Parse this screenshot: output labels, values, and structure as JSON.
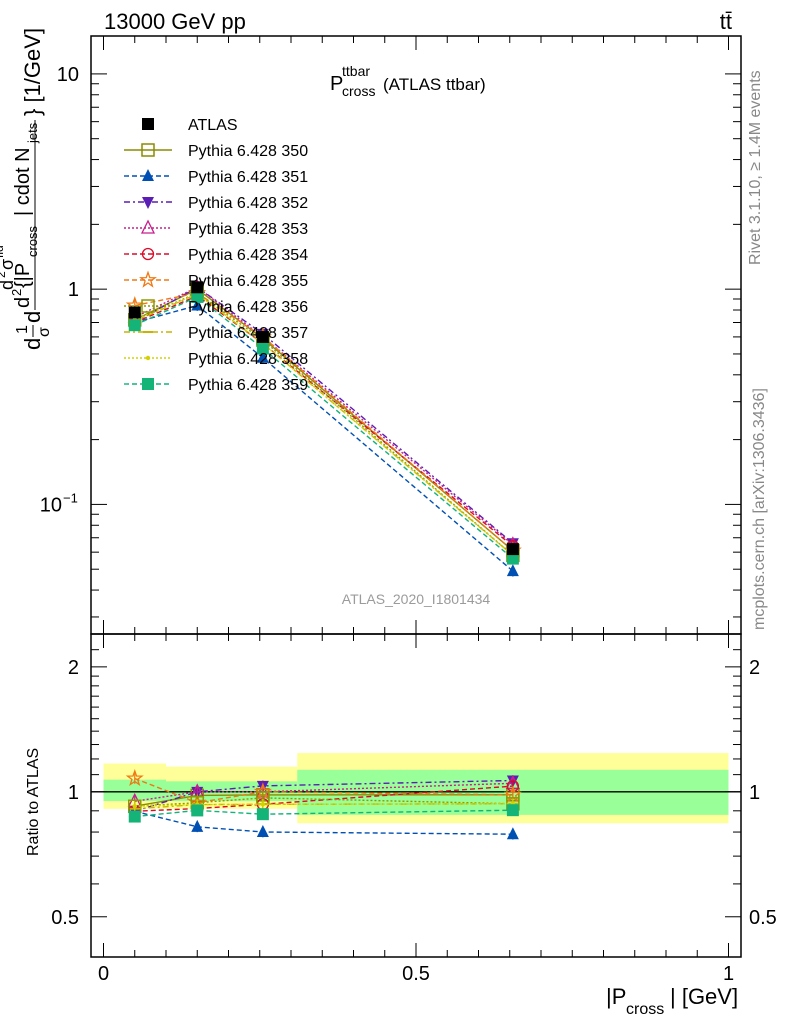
{
  "header": {
    "energy": "13000 GeV pp",
    "process": "tt̄"
  },
  "side_text": {
    "rivet": "Rivet 3.1.10, ≥ 1.4M events",
    "mcplots": "mcplots.cern.ch [arXiv:1306.3436]"
  },
  "title": {
    "main": "P",
    "sup": "ttbar",
    "sub": "cross",
    "tail": " (ATLAS ttbar)"
  },
  "watermark": "ATLAS_2020_I1801434",
  "ylabel_main": {
    "a": "d",
    "frac1": "1",
    "frac2": "σ",
    "b": "d",
    "c": "d",
    "sup2": "2",
    "d": "{|P",
    "sub": "cross",
    "e": "| cdot N",
    "sub2": "jets",
    "f": "} [1/GeV]",
    "top1": "d",
    "top2": "2",
    "top3": "σ",
    "top4": "fid"
  },
  "ylabel_ratio": "Ratio to ATLAS",
  "xlabel": {
    "pre": "|P",
    "sub": "cross",
    "post": "| [GeV]"
  },
  "ticks_main": [
    {
      "label": "10",
      "value": 10
    },
    {
      "label": "1",
      "value": 1
    },
    {
      "label": "10",
      "sup": "−1",
      "value": 0.1
    }
  ],
  "ticks_ratio": [
    {
      "label": "2",
      "value": 2
    },
    {
      "label": "1",
      "value": 1
    },
    {
      "label": "0.5",
      "value": 0.5
    }
  ],
  "ticks_x": [
    {
      "label": "0",
      "value": 0
    },
    {
      "label": "0.5",
      "value": 0.5
    },
    {
      "label": "1",
      "value": 1
    }
  ],
  "chart_data": {
    "type": "line",
    "x_edges": [
      0,
      0.1,
      0.2,
      0.31,
      1.0
    ],
    "x": [
      0.05,
      0.15,
      0.255,
      0.655
    ],
    "xlim": [
      -0.02,
      1.02
    ],
    "ylim_main": [
      0.025,
      15
    ],
    "ylim_ratio": [
      0.4,
      2.4
    ],
    "log_y": true,
    "reference": {
      "name": "ATLAS",
      "values": [
        0.78,
        1.02,
        0.6,
        0.062
      ],
      "band_inner": [
        [
          0.95,
          1.07
        ],
        [
          0.95,
          1.06
        ],
        [
          0.95,
          1.06
        ],
        [
          0.88,
          1.13
        ]
      ],
      "band_outer": [
        [
          0.91,
          1.17
        ],
        [
          0.91,
          1.15
        ],
        [
          0.91,
          1.15
        ],
        [
          0.84,
          1.24
        ]
      ]
    },
    "series": [
      {
        "name": "Pythia 6.428 350",
        "color": "#8b8b00",
        "dash": "",
        "marker": "square-open",
        "values": [
          0.72,
          1.0,
          0.59,
          0.061
        ]
      },
      {
        "name": "Pythia 6.428 351",
        "color": "#0050b4",
        "dash": "5,3",
        "marker": "triangle-up",
        "values": [
          0.7,
          0.84,
          0.48,
          0.049
        ]
      },
      {
        "name": "Pythia 6.428 352",
        "color": "#5a1eb4",
        "dash": "6,3,2,3",
        "marker": "triangle-down",
        "values": [
          0.7,
          1.02,
          0.62,
          0.066
        ]
      },
      {
        "name": "Pythia 6.428 353",
        "color": "#c81e8c",
        "dash": "2,2",
        "marker": "triangle-open",
        "values": [
          0.74,
          1.02,
          0.6,
          0.065
        ]
      },
      {
        "name": "Pythia 6.428 354",
        "color": "#dc0a28",
        "dash": "5,3",
        "marker": "circle-open",
        "values": [
          0.7,
          0.93,
          0.56,
          0.064
        ]
      },
      {
        "name": "Pythia 6.428 355",
        "color": "#f07814",
        "dash": "5,3",
        "marker": "star",
        "values": [
          0.84,
          0.96,
          0.6,
          0.061
        ]
      },
      {
        "name": "Pythia 6.428 356",
        "color": "#8c9b00",
        "dash": "2,2",
        "marker": "square-open",
        "values": [
          0.72,
          0.96,
          0.58,
          0.058
        ]
      },
      {
        "name": "Pythia 6.428 357",
        "color": "#c8b400",
        "dash": "6,3,2,3",
        "marker": "dash",
        "values": [
          0.71,
          0.95,
          0.56,
          0.058
        ]
      },
      {
        "name": "Pythia 6.428 358",
        "color": "#d2d200",
        "dash": "2,2",
        "marker": "dot",
        "values": [
          0.72,
          0.95,
          0.56,
          0.058
        ]
      },
      {
        "name": "Pythia 6.428 359",
        "color": "#14b478",
        "dash": "5,3",
        "marker": "square",
        "values": [
          0.68,
          0.92,
          0.53,
          0.056
        ]
      }
    ]
  }
}
